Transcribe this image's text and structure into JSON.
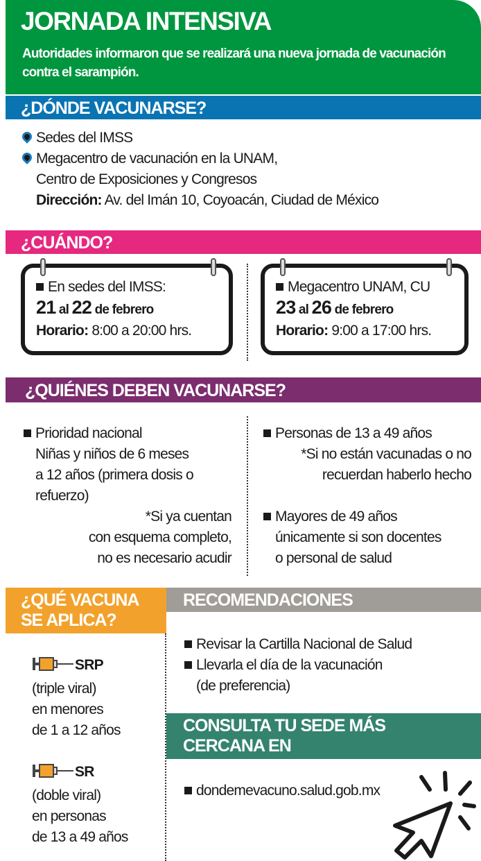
{
  "header": {
    "title": "JORNADA INTENSIVA",
    "subtitle": "Autoridades informaron que se realizará una nueva jornada de vacunación contra el sarampión."
  },
  "donde": {
    "title": "¿DÓNDE VACUNARSE?",
    "items": [
      "Sedes del IMSS",
      "Megacentro de vacunación en la UNAM,"
    ],
    "line2": "Centro de Exposiciones y Congresos",
    "address_label": "Dirección:",
    "address": " Av. del Imán 10, Coyoacán, Ciudad de México"
  },
  "cuando": {
    "title": "¿CUÁNDO?",
    "cards": [
      {
        "place": "En sedes del IMSS:",
        "d1": "21",
        "al": " al ",
        "d2": "22",
        "month": " de febrero",
        "hours_label": "Horario:",
        "hours": " 8:00 a 20:00 hrs."
      },
      {
        "place": "Megacentro UNAM, CU",
        "d1": "23",
        "al": " al ",
        "d2": "26",
        "month": " de febrero",
        "hours_label": "Horario:",
        "hours": " 9:00 a 17:00 hrs."
      }
    ]
  },
  "quienes": {
    "title": "¿QUIÉNES DEBEN VACUNARSE?",
    "left": {
      "head": "Prioridad nacional",
      "lines": [
        "Niñas y niños de 6 meses",
        "a 12 años (primera dosis o",
        "refuerzo)"
      ],
      "note": [
        "*Si ya cuentan",
        "con esquema completo,",
        "no es necesario acudir"
      ]
    },
    "right": [
      {
        "head": "Personas de 13 a 49 años",
        "lines": [
          "*Si no están vacunadas o no",
          "recuerdan haberlo hecho"
        ]
      },
      {
        "head": "Mayores de 49 años",
        "lines": [
          "únicamente si son docentes",
          "o personal de salud"
        ]
      }
    ]
  },
  "vacuna": {
    "title": "¿QUÉ VACUNA SE APLICA?",
    "items": [
      {
        "name": "SRP",
        "lines": [
          "(triple viral)",
          "en menores",
          "de 1 a 12 años"
        ]
      },
      {
        "name": "SR",
        "lines": [
          "(doble viral)",
          "en personas",
          "de 13 a 49 años"
        ]
      }
    ]
  },
  "recomendaciones": {
    "title": "RECOMENDACIONES",
    "items": [
      "Revisar la Cartilla Nacional de Salud",
      "Llevarla el día de la vacunación"
    ],
    "extra": "(de preferencia)"
  },
  "consulta": {
    "title": "CONSULTA TU SEDE MÁS CERCANA EN",
    "url": "dondemevacuno.salud.gob.mx"
  },
  "colors": {
    "green": "#00963f",
    "blue": "#0a74b3",
    "pink": "#e6287f",
    "purple": "#7b2d6e",
    "orange": "#f2a22c",
    "gray": "#a09c97",
    "teal": "#34836f"
  },
  "icons": [
    "map-pin-icon",
    "calendar-icon",
    "syringe-icon",
    "cursor-click-icon"
  ]
}
